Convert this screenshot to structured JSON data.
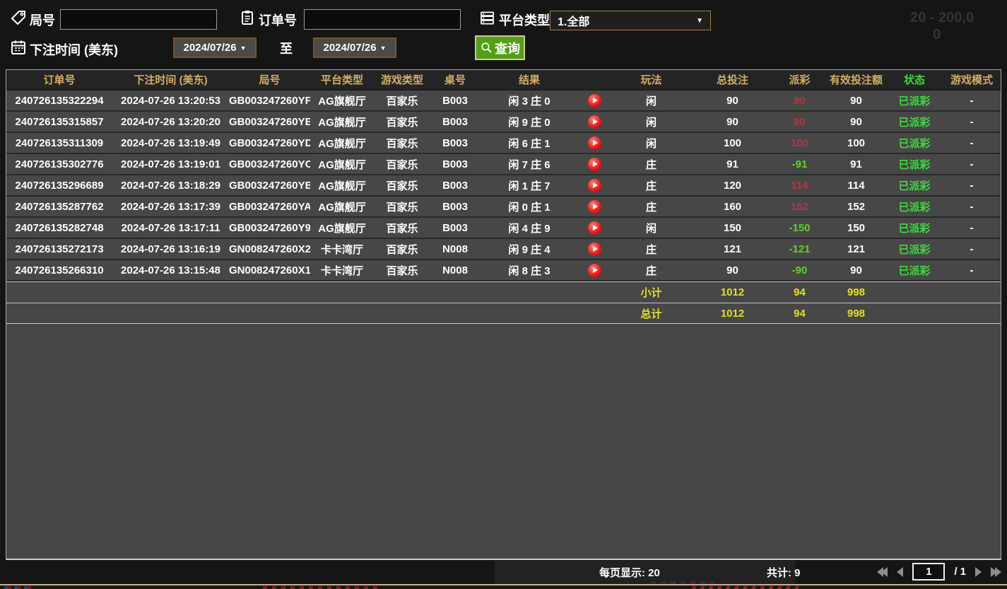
{
  "filters": {
    "round": {
      "label": "局号",
      "value": ""
    },
    "order": {
      "label": "订单号",
      "value": ""
    },
    "platform": {
      "label": "平台类型",
      "value": "1.全部",
      "arrow": "▼"
    },
    "bet_time": {
      "label": "下注时间 (美东)"
    },
    "date_from": "2024/07/26",
    "to_label": "至",
    "date_to": "2024/07/26",
    "date_arrow": "▼",
    "search_label": "查询"
  },
  "background_hints": {
    "limit_text": "20 - 200,0",
    "zero_text": "0"
  },
  "table": {
    "headers": [
      "订单号",
      "下注时间 (美东)",
      "局号",
      "平台类型",
      "游戏类型",
      "桌号",
      "结果",
      "",
      "玩法",
      "总投注",
      "派彩",
      "有效投注额",
      "状态",
      "游戏模式"
    ],
    "rows": [
      {
        "order_no": "240726135322294",
        "bet_time": "2024-07-26 13:20:53",
        "round_no": "GB003247260YF",
        "platform": "AG旗舰厅",
        "game_type": "百家乐",
        "table_no": "B003",
        "result": "闲 3 庄 0",
        "bet_type": "闲",
        "total_bet": "90",
        "payout": "90",
        "payout_sign": "win",
        "valid_bet": "90",
        "status": "已派彩",
        "game_mode": "-"
      },
      {
        "order_no": "240726135315857",
        "bet_time": "2024-07-26 13:20:20",
        "round_no": "GB003247260YE",
        "platform": "AG旗舰厅",
        "game_type": "百家乐",
        "table_no": "B003",
        "result": "闲 9 庄 0",
        "bet_type": "闲",
        "total_bet": "90",
        "payout": "90",
        "payout_sign": "win",
        "valid_bet": "90",
        "status": "已派彩",
        "game_mode": "-"
      },
      {
        "order_no": "240726135311309",
        "bet_time": "2024-07-26 13:19:49",
        "round_no": "GB003247260YD",
        "platform": "AG旗舰厅",
        "game_type": "百家乐",
        "table_no": "B003",
        "result": "闲 6 庄 1",
        "bet_type": "闲",
        "total_bet": "100",
        "payout": "100",
        "payout_sign": "win",
        "valid_bet": "100",
        "status": "已派彩",
        "game_mode": "-"
      },
      {
        "order_no": "240726135302776",
        "bet_time": "2024-07-26 13:19:01",
        "round_no": "GB003247260YC",
        "platform": "AG旗舰厅",
        "game_type": "百家乐",
        "table_no": "B003",
        "result": "闲 7 庄 6",
        "bet_type": "庄",
        "total_bet": "91",
        "payout": "-91",
        "payout_sign": "loss",
        "valid_bet": "91",
        "status": "已派彩",
        "game_mode": "-"
      },
      {
        "order_no": "240726135296689",
        "bet_time": "2024-07-26 13:18:29",
        "round_no": "GB003247260YB",
        "platform": "AG旗舰厅",
        "game_type": "百家乐",
        "table_no": "B003",
        "result": "闲 1 庄 7",
        "bet_type": "庄",
        "total_bet": "120",
        "payout": "114",
        "payout_sign": "win",
        "valid_bet": "114",
        "status": "已派彩",
        "game_mode": "-"
      },
      {
        "order_no": "240726135287762",
        "bet_time": "2024-07-26 13:17:39",
        "round_no": "GB003247260YA",
        "platform": "AG旗舰厅",
        "game_type": "百家乐",
        "table_no": "B003",
        "result": "闲 0 庄 1",
        "bet_type": "庄",
        "total_bet": "160",
        "payout": "152",
        "payout_sign": "win",
        "valid_bet": "152",
        "status": "已派彩",
        "game_mode": "-"
      },
      {
        "order_no": "240726135282748",
        "bet_time": "2024-07-26 13:17:11",
        "round_no": "GB003247260Y9",
        "platform": "AG旗舰厅",
        "game_type": "百家乐",
        "table_no": "B003",
        "result": "闲 4 庄 9",
        "bet_type": "闲",
        "total_bet": "150",
        "payout": "-150",
        "payout_sign": "loss",
        "valid_bet": "150",
        "status": "已派彩",
        "game_mode": "-"
      },
      {
        "order_no": "240726135272173",
        "bet_time": "2024-07-26 13:16:19",
        "round_no": "GN008247260X2",
        "platform": "卡卡湾厅",
        "game_type": "百家乐",
        "table_no": "N008",
        "result": "闲 9 庄 4",
        "bet_type": "庄",
        "total_bet": "121",
        "payout": "-121",
        "payout_sign": "loss",
        "valid_bet": "121",
        "status": "已派彩",
        "game_mode": "-"
      },
      {
        "order_no": "240726135266310",
        "bet_time": "2024-07-26 13:15:48",
        "round_no": "GN008247260X1",
        "platform": "卡卡湾厅",
        "game_type": "百家乐",
        "table_no": "N008",
        "result": "闲 8 庄 3",
        "bet_type": "庄",
        "total_bet": "90",
        "payout": "-90",
        "payout_sign": "loss",
        "valid_bet": "90",
        "status": "已派彩",
        "game_mode": "-"
      }
    ],
    "subtotal": {
      "label": "小计",
      "total_bet": "1012",
      "payout": "94",
      "valid_bet": "998"
    },
    "grand_total": {
      "label": "总计",
      "total_bet": "1012",
      "payout": "94",
      "valid_bet": "998"
    }
  },
  "pagination": {
    "per_page_label": "每页显示: 20",
    "total_label": "共计: 9",
    "page": "1",
    "page_separator": "/",
    "page_count": "1"
  },
  "colors": {
    "header_text": "#d3ae63",
    "payout_win": "#b23742",
    "payout_loss": "#5fd22b",
    "status_paid": "#3bdc3b",
    "totals_yellow": "#e3e11f",
    "search_green": "#53a017",
    "date_border": "#7d5426",
    "dropdown_border": "#a08040"
  }
}
